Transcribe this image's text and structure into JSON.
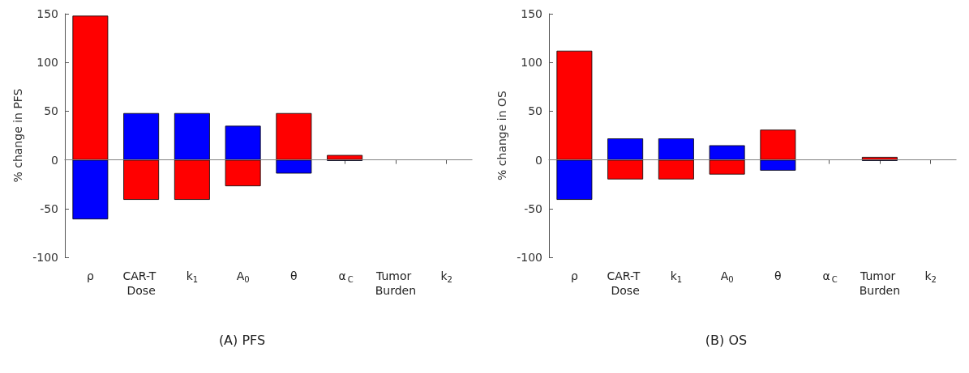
{
  "chart_data": [
    {
      "type": "bar",
      "title": "(A) PFS",
      "ylabel": "% change in PFS",
      "stacked": true,
      "categories": [
        "ρ",
        "CAR-T Dose",
        "k$_{1}$",
        "A$_{0}$",
        "θ",
        "α$_{C}$",
        "Tumor Burden",
        "k$_{2}$"
      ],
      "series": [
        {
          "color": "#ff0000",
          "values": [
            148,
            -41,
            -41,
            -27,
            48,
            5,
            null,
            null
          ]
        },
        {
          "color": "#0000ff",
          "values": [
            -61,
            48,
            48,
            35,
            -14,
            -1,
            null,
            null
          ]
        }
      ],
      "ylim": [
        -100,
        150
      ],
      "yticks": [
        -100,
        -50,
        0,
        50,
        100,
        150
      ],
      "grid": false,
      "ref_lines": [
        {
          "axis": "y",
          "value": 0,
          "color": "#808080"
        }
      ]
    },
    {
      "type": "bar",
      "title": "(B) OS",
      "ylabel": "% change in OS",
      "stacked": true,
      "categories": [
        "ρ",
        "CAR-T Dose",
        "k$_{1}$",
        "A$_{0}$",
        "θ",
        "α$_{C}$",
        "Tumor Burden",
        "k$_{2}$"
      ],
      "series": [
        {
          "color": "#ff0000",
          "values": [
            112,
            -20,
            -20,
            -15,
            31,
            null,
            3,
            null
          ]
        },
        {
          "color": "#0000ff",
          "values": [
            -41,
            22,
            22,
            15,
            -11,
            null,
            -1,
            null
          ]
        }
      ],
      "ylim": [
        -100,
        150
      ],
      "yticks": [
        -100,
        -50,
        0,
        50,
        100,
        150
      ],
      "grid": false,
      "ref_lines": [
        {
          "axis": "y",
          "value": 0,
          "color": "#808080"
        }
      ]
    }
  ]
}
